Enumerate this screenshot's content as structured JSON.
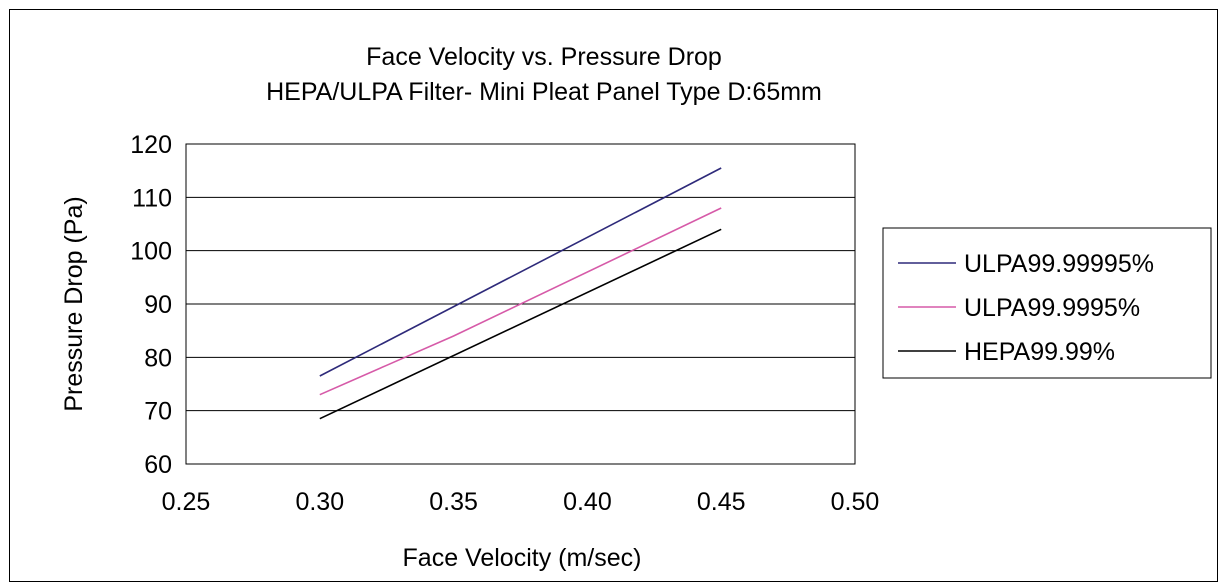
{
  "chart_data": {
    "type": "line",
    "title": "Face Velocity vs. Pressure Drop",
    "subtitle": "HEPA/ULPA Filter- Mini Pleat Panel Type D:65mm",
    "xlabel": "Face Velocity (m/sec)",
    "ylabel": "Pressure Drop (Pa)",
    "xlim": [
      0.25,
      0.5
    ],
    "ylim": [
      60,
      120
    ],
    "x_ticks": [
      "0.25",
      "0.30",
      "0.35",
      "0.40",
      "0.45",
      "0.50"
    ],
    "y_ticks": [
      "60",
      "70",
      "80",
      "90",
      "100",
      "110",
      "120"
    ],
    "grid": "horizontal",
    "legend_position": "right",
    "series": [
      {
        "name": "ULPA99.99995%",
        "color": "#2e2a7a",
        "points": [
          {
            "x": 0.3,
            "y": 76.5
          },
          {
            "x": 0.45,
            "y": 115.5
          }
        ]
      },
      {
        "name": "ULPA99.9995%",
        "color": "#d65aa8",
        "points": [
          {
            "x": 0.3,
            "y": 73
          },
          {
            "x": 0.325,
            "y": 78.5
          },
          {
            "x": 0.35,
            "y": 84
          },
          {
            "x": 0.45,
            "y": 108
          }
        ]
      },
      {
        "name": "HEPA99.99%",
        "color": "#000000",
        "points": [
          {
            "x": 0.3,
            "y": 68.5
          },
          {
            "x": 0.45,
            "y": 104
          }
        ]
      }
    ]
  }
}
